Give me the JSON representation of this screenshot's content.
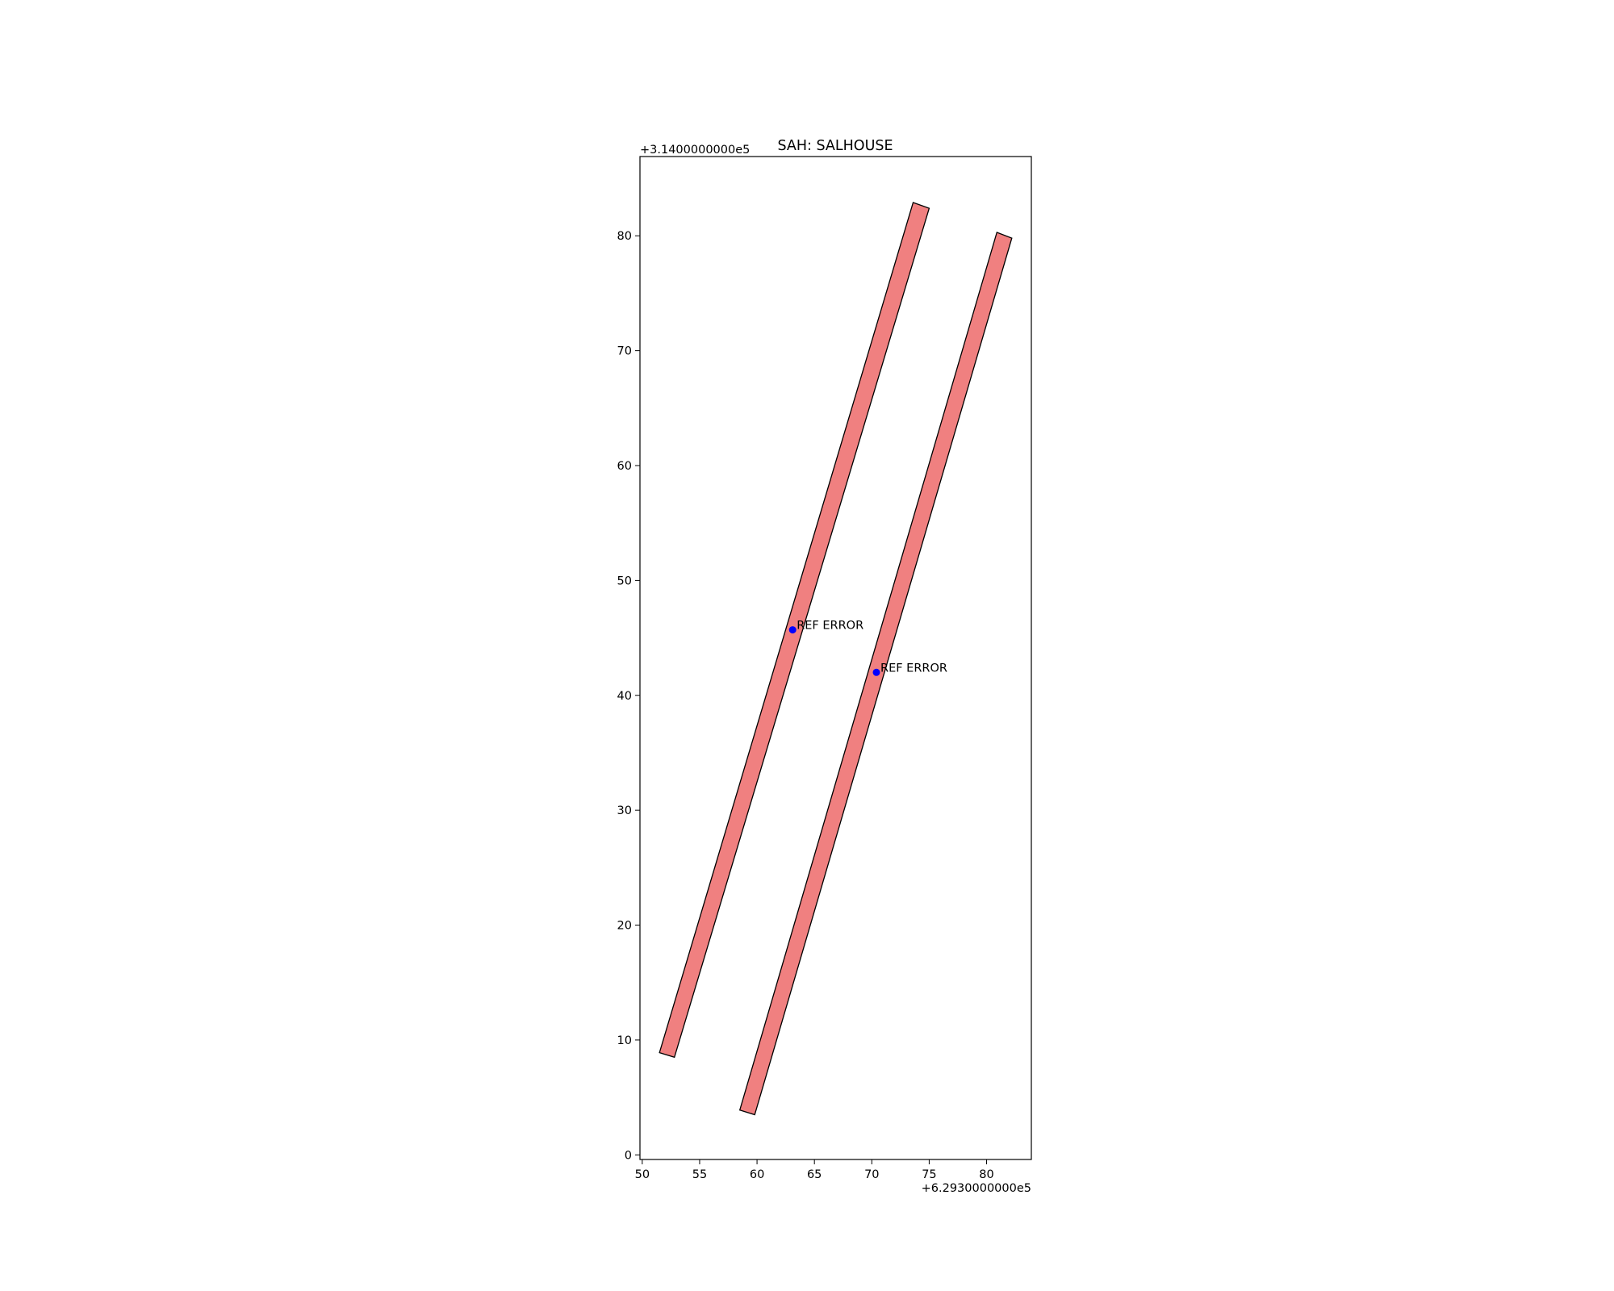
{
  "chart_data": {
    "type": "scatter",
    "title": "SAH: SALHOUSE",
    "xlabel": "",
    "ylabel": "",
    "x_offset_label": "+6.2930000000e5",
    "y_offset_label": "+3.1400000000e5",
    "xlim": [
      49.8,
      83.9
    ],
    "ylim": [
      -0.4,
      86.9
    ],
    "x_ticks": [
      50,
      55,
      60,
      65,
      70,
      75,
      80
    ],
    "x_tick_labels": [
      "50",
      "55",
      "60",
      "65",
      "70",
      "75",
      "80"
    ],
    "y_ticks": [
      0,
      10,
      20,
      30,
      40,
      50,
      60,
      70,
      80
    ],
    "y_tick_labels": [
      "0",
      "10",
      "20",
      "30",
      "40",
      "50",
      "60",
      "70",
      "80"
    ],
    "grid": false,
    "polygons": [
      {
        "fill": "#f08080",
        "edge": "#000000",
        "vertices": [
          [
            51.5,
            8.9
          ],
          [
            52.8,
            8.5
          ],
          [
            75.0,
            82.4
          ],
          [
            73.6,
            82.9
          ]
        ]
      },
      {
        "fill": "#f08080",
        "edge": "#000000",
        "vertices": [
          [
            58.5,
            3.9
          ],
          [
            59.8,
            3.5
          ],
          [
            82.2,
            79.8
          ],
          [
            80.9,
            80.3
          ]
        ]
      }
    ],
    "points": [
      {
        "x": 63.1,
        "y": 45.7,
        "color": "#0000ff",
        "label": "REF ERROR"
      },
      {
        "x": 70.4,
        "y": 42.0,
        "color": "#0000ff",
        "label": "REF ERROR"
      }
    ]
  }
}
